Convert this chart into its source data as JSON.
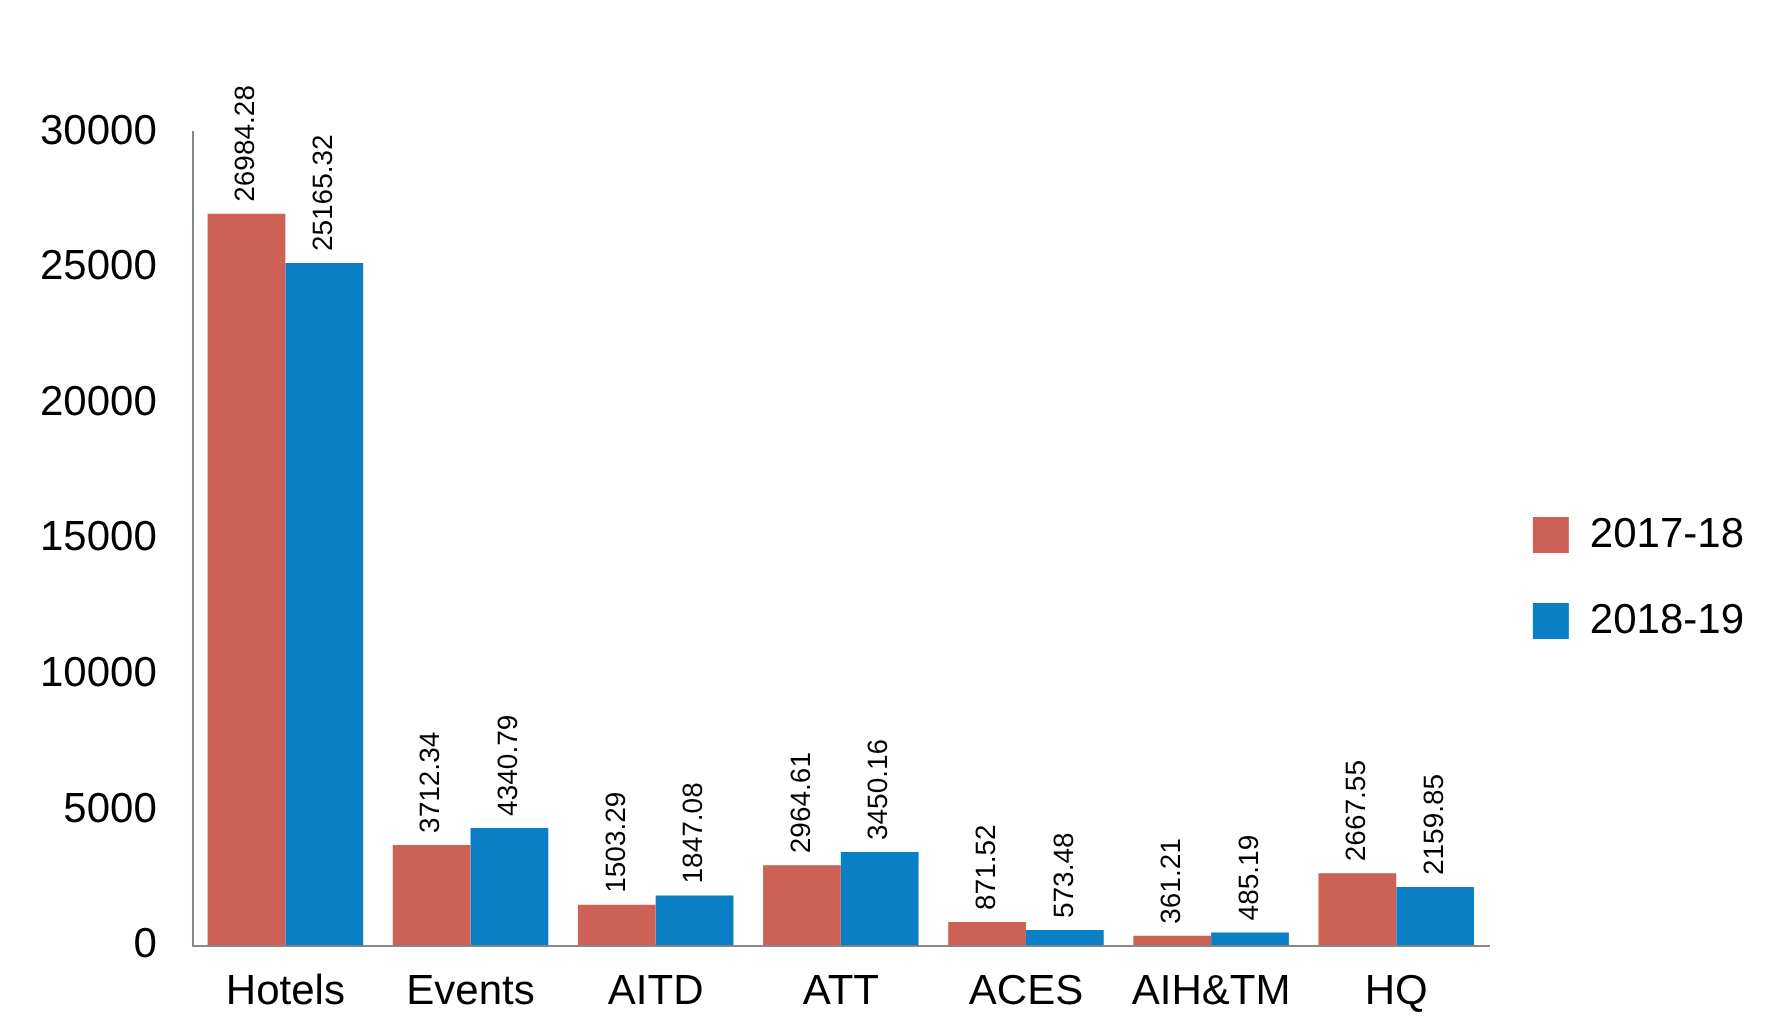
{
  "chart_data": {
    "type": "bar",
    "categories": [
      "Hotels",
      "Events",
      "AITD",
      "ATT",
      "ACES",
      "AIH&TM",
      "HQ"
    ],
    "series": [
      {
        "name": "2017-18",
        "color": "#cd6155",
        "values": [
          26984.28,
          3712.34,
          1503.29,
          2964.61,
          871.52,
          361.21,
          2667.55
        ]
      },
      {
        "name": "2018-19",
        "color": "#0a7fc6",
        "values": [
          25165.32,
          4340.79,
          1847.08,
          3450.16,
          573.48,
          485.19,
          2159.85
        ]
      }
    ],
    "ylim": [
      0,
      30000
    ],
    "yticks": [
      0,
      5000,
      10000,
      15000,
      20000,
      25000,
      30000
    ],
    "grid": false,
    "legend": "right",
    "data_labels": true
  }
}
